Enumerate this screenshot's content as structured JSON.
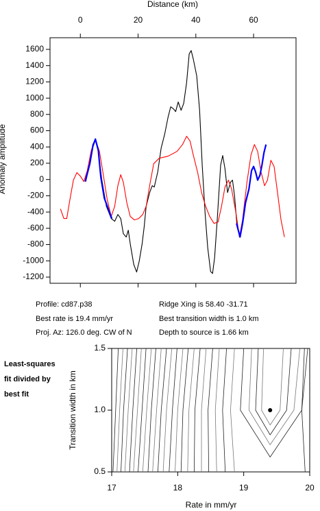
{
  "chart_data": [
    {
      "type": "line",
      "xlabel": "Distance (km)",
      "ylabel": "Anomaly amplitude",
      "xlim": [
        -10.5,
        74.7
      ],
      "ylim": [
        -1276,
        1743
      ],
      "xticks": [
        0,
        20,
        40,
        60
      ],
      "yticks": [
        -1200,
        -1000,
        -800,
        -600,
        -400,
        -200,
        0,
        200,
        400,
        600,
        800,
        1000,
        1200,
        1400,
        1600
      ],
      "series": [
        {
          "color": "#000000",
          "x": [
            1.9,
            3.1,
            4.3,
            5.2,
            6.2,
            7.4,
            9.0,
            10.7,
            11.9,
            13.0,
            14.0,
            14.9,
            15.9,
            16.6,
            17.3,
            18.5,
            19.5,
            20.4,
            21.4,
            22.1,
            22.8,
            24.0,
            24.9,
            25.6,
            26.8,
            28.0,
            29.2,
            30.4,
            31.3,
            32.3,
            33.0,
            33.9,
            34.9,
            35.8,
            36.8,
            37.7,
            38.4,
            39.1,
            40.3,
            41.3,
            42.2,
            43.2,
            44.1,
            45.1,
            45.8,
            46.5,
            47.4,
            48.6,
            49.3,
            50.1,
            51.0,
            52.0,
            52.7,
            53.4,
            54.3,
            55.3
          ],
          "values": [
            -25,
            177,
            430,
            497,
            346,
            8,
            -329,
            -480,
            -514,
            -430,
            -480,
            -666,
            -708,
            -624,
            -792,
            -1045,
            -1138,
            -1003,
            -792,
            -582,
            -329,
            -160,
            -76,
            -93,
            93,
            388,
            556,
            767,
            894,
            868,
            835,
            953,
            851,
            936,
            1189,
            1543,
            1585,
            1484,
            1273,
            851,
            177,
            -413,
            -835,
            -1130,
            -1155,
            -961,
            -497,
            177,
            295,
            135,
            -160,
            -34,
            -8,
            -202,
            -582,
            -708
          ]
        },
        {
          "color": "#ff0000",
          "x": [
            -6.9,
            -5.7,
            -4.7,
            -3.6,
            -2.4,
            -1.2,
            0,
            1.2,
            2.4,
            3.8,
            5.2,
            6.6,
            7.8,
            9.3,
            10.7,
            11.9,
            13.0,
            14.0,
            14.9,
            16.1,
            17.3,
            18.7,
            20.2,
            21.6,
            22.8,
            24.0,
            25.4,
            27.3,
            30.4,
            33.5,
            35.4,
            36.8,
            38.0,
            39.1,
            40.6,
            42.0,
            43.4,
            44.8,
            46.3,
            47.7,
            48.9,
            50.1,
            51.3,
            52.4,
            53.9,
            55.1,
            56.2,
            57.7,
            59.1,
            60.3,
            61.4,
            62.6,
            63.8,
            64.8,
            66.0,
            67.1,
            68.3,
            69.5,
            70.7
          ],
          "values": [
            -362,
            -480,
            -480,
            -244,
            -8,
            84,
            42,
            -25,
            110,
            362,
            489,
            346,
            93,
            -244,
            -455,
            -329,
            -76,
            59,
            -34,
            -287,
            -455,
            -497,
            -480,
            -430,
            -329,
            -76,
            194,
            261,
            287,
            346,
            430,
            531,
            472,
            303,
            93,
            -160,
            -329,
            -455,
            -540,
            -523,
            -329,
            -93,
            -8,
            -118,
            -413,
            -708,
            -497,
            -34,
            303,
            430,
            346,
            93,
            -76,
            -8,
            236,
            160,
            -160,
            -497,
            -708
          ]
        },
        {
          "color": "#0000ff",
          "x": [
            1.7,
            3.3,
            4.3,
            5.2,
            6.2,
            7.1,
            8.3,
            9.5,
            10.9,
            null,
            54.1,
            55.3,
            56.2,
            57.2,
            58.4,
            59.3,
            60.0,
            60.7,
            61.4,
            62.2,
            62.9,
            63.6,
            64.3
          ],
          "values": [
            -25,
            194,
            405,
            497,
            362,
            25,
            -228,
            -346,
            -480,
            null,
            -540,
            -708,
            -540,
            -287,
            -118,
            110,
            160,
            93,
            -8,
            51,
            177,
            329,
            430
          ]
        }
      ]
    },
    {
      "type": "contour",
      "xlabel": "Rate in mm/yr",
      "ylabel": "Transition width in km",
      "annotation": [
        "Least-squares",
        "fit divided by",
        "best fit"
      ],
      "xlim": [
        17,
        20
      ],
      "ylim": [
        0.5,
        1.5
      ],
      "xticks": [
        17,
        18,
        19,
        20
      ],
      "yticks": [
        {
          "value": 0.5,
          "label": "0.5"
        },
        {
          "value": 1.0,
          "label": "1.0"
        },
        {
          "value": 1.5,
          "label": "1.5"
        }
      ],
      "contour_y": [
        0.5,
        1.0,
        1.5
      ],
      "contours": [
        [
          17.02,
          17.06,
          17.1
        ],
        [
          17.08,
          17.12,
          17.17
        ],
        [
          17.14,
          17.18,
          17.24
        ],
        [
          17.2,
          17.25,
          17.31
        ],
        [
          17.27,
          17.32,
          17.38
        ],
        [
          17.33,
          17.39,
          17.45
        ],
        [
          17.4,
          17.46,
          17.52
        ],
        [
          17.47,
          17.53,
          17.6
        ],
        [
          17.55,
          17.6,
          17.67
        ],
        [
          17.62,
          17.68,
          17.75
        ],
        [
          17.7,
          17.75,
          17.83
        ],
        [
          17.78,
          17.83,
          17.91
        ],
        [
          17.87,
          17.92,
          17.99
        ],
        [
          17.96,
          18.0,
          18.08
        ],
        [
          18.05,
          18.08,
          18.16
        ],
        [
          18.15,
          18.17,
          18.25
        ],
        [
          18.25,
          18.26,
          18.34
        ],
        [
          18.36,
          18.36,
          18.43
        ],
        [
          18.47,
          18.46,
          18.53
        ],
        [
          18.59,
          18.57,
          18.63
        ],
        [
          18.72,
          18.68,
          18.74
        ],
        [
          18.86,
          18.8,
          18.86
        ],
        [
          19.93,
          19.88,
          19.92
        ]
      ],
      "closed_contours": [
        {
          "x": [
            19.0,
            18.95,
            19.4,
            19.88,
            19.97
          ],
          "y": [
            1.5,
            1.0,
            0.62,
            1.0,
            1.5
          ]
        },
        {
          "x": [
            19.12,
            19.08,
            19.4,
            19.76,
            19.85
          ],
          "y": [
            1.5,
            1.0,
            0.72,
            1.0,
            1.5
          ]
        },
        {
          "x": [
            19.22,
            19.18,
            19.4,
            19.65,
            19.72
          ],
          "y": [
            1.5,
            1.0,
            0.8,
            1.0,
            1.5
          ]
        },
        {
          "x": [
            19.3,
            19.27,
            19.4,
            19.55,
            19.6
          ],
          "y": [
            1.5,
            1.0,
            0.88,
            1.0,
            1.5
          ]
        }
      ],
      "best_point": {
        "x": 19.4,
        "y": 1.0
      }
    }
  ],
  "info": [
    "Profile: cd87.p38",
    "Ridge Xing is 58.40 -31.71",
    "Best rate is 19.4 mm/yr",
    "Best transition width is 1.0 km",
    "Proj. Az: 126.0 deg. CW of N",
    "Depth to source is   1.66 km"
  ]
}
